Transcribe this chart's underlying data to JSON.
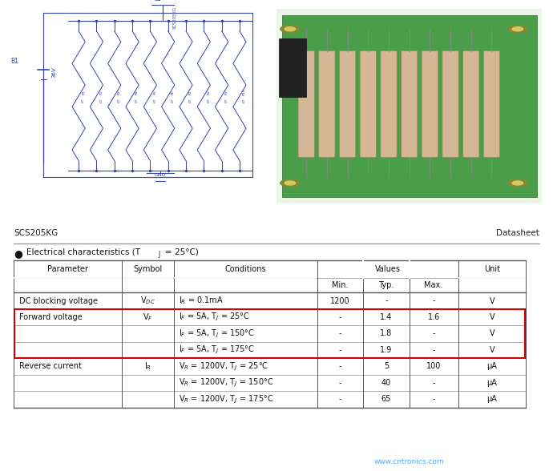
{
  "title_left": "SCS205KG",
  "title_right": "Datasheet",
  "bg_color": "#ffffff",
  "table_data": [
    [
      "DC blocking voltage",
      "V$_{DC}$",
      "I$_R$ = 0.1mA",
      "1200",
      "-",
      "-",
      "V"
    ],
    [
      "Forward voltage",
      "V$_F$",
      "I$_F$ = 5A, T$_J$ = 25°C",
      "-",
      "1.4",
      "1.6",
      "V"
    ],
    [
      "",
      "",
      "I$_F$ = 5A, T$_J$ = 150°C",
      "-",
      "1.8",
      "-",
      "V"
    ],
    [
      "",
      "",
      "I$_F$ = 5A, T$_J$ = 175°C",
      "-",
      "1.9",
      "-",
      "V"
    ],
    [
      "Reverse current",
      "I$_R$",
      "V$_R$ = 1200V, T$_J$ = 25°C",
      "-",
      "5",
      "100",
      "μA"
    ],
    [
      "",
      "",
      "V$_R$ = 1200V, T$_J$ = 150°C",
      "-",
      "40",
      "-",
      "μA"
    ],
    [
      "",
      "",
      "V$_R$ = 1200V, T$_J$ = 175°C",
      "-",
      "65",
      "-",
      "μA"
    ]
  ],
  "highlight_rows": [
    1,
    2,
    3
  ],
  "watermark": "www.cntronics.com",
  "watermark_color": "#55aaff",
  "schematic_color": "#3344aa",
  "pcb_green": "#3a8a3a"
}
